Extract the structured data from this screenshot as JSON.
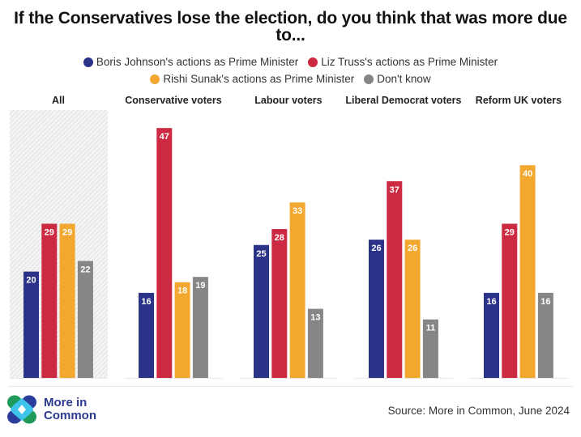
{
  "chart_data": {
    "type": "bar",
    "title": "If the Conservatives lose the election, do you think that was more due to...",
    "categories": [
      "All",
      "Conservative voters",
      "Labour voters",
      "Liberal Democrat voters",
      "Reform UK voters"
    ],
    "series": [
      {
        "name": "Boris Johnson's actions as Prime Minister",
        "color": "#2b3388",
        "values": [
          20,
          16,
          25,
          26,
          16
        ]
      },
      {
        "name": "Liz Truss's actions as Prime Minister",
        "color": "#cc2a42",
        "values": [
          29,
          47,
          28,
          37,
          29
        ]
      },
      {
        "name": "Rishi Sunak's actions as Prime Minister",
        "color": "#f2a72e",
        "values": [
          29,
          18,
          33,
          26,
          40
        ]
      },
      {
        "name": "Don't know",
        "color": "#868686",
        "values": [
          22,
          19,
          13,
          11,
          16
        ]
      }
    ],
    "highlighted_category": "All",
    "xlabel": "",
    "ylabel": "",
    "ylim": [
      0,
      50
    ],
    "grid": false,
    "legend_position": "top-center",
    "data_labels": true
  },
  "title": "If the Conservatives lose the election, do you think that was more due to...",
  "legend": [
    {
      "label": "Boris Johnson's actions as Prime Minister",
      "color": "#2b3388"
    },
    {
      "label": "Liz Truss's actions as Prime Minister",
      "color": "#cc2a42"
    },
    {
      "label": "Rishi Sunak's actions as Prime Minister",
      "color": "#f2a72e"
    },
    {
      "label": "Don't know",
      "color": "#868686"
    }
  ],
  "footer": {
    "logo_line1": "More in",
    "logo_line2": "Common",
    "source": "Source: More in Common, June 2024"
  }
}
